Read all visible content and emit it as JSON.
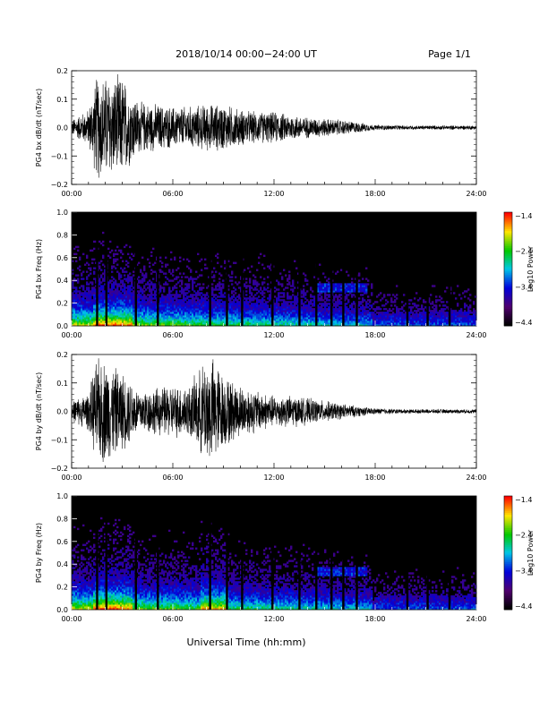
{
  "header": {
    "title": "2018/10/14  00:00−24:00 UT",
    "page": "Page 1/1"
  },
  "footer": {
    "xlabel": "Universal Time (hh:mm)"
  },
  "chart_data": [
    {
      "type": "line",
      "ylabel": "PG4 bx dB/dt (nT/sec)",
      "ylim": [
        -0.2,
        0.2
      ],
      "yticks": [
        "0.2",
        "0.1",
        "0.0",
        "−0.1",
        "−0.2"
      ],
      "xlim_hours": [
        0,
        24
      ],
      "xticks": [
        "00:00",
        "06:00",
        "12:00",
        "18:00",
        "24:00"
      ],
      "envelope": {
        "hour": [
          0,
          1,
          1.5,
          2,
          2.5,
          3,
          3.5,
          4,
          5,
          6,
          7,
          8,
          9,
          10,
          11,
          12,
          13,
          14,
          15,
          16,
          17,
          17.5,
          18,
          20,
          22,
          24
        ],
        "amplitude": [
          0.03,
          0.07,
          0.2,
          0.2,
          0.19,
          0.2,
          0.14,
          0.1,
          0.09,
          0.08,
          0.08,
          0.09,
          0.09,
          0.07,
          0.06,
          0.06,
          0.05,
          0.04,
          0.035,
          0.03,
          0.02,
          0.015,
          0.01,
          0.008,
          0.008,
          0.008
        ]
      }
    },
    {
      "type": "heatmap",
      "ylabel": "PG4 bx Freq (Hz)",
      "ylim": [
        0,
        1
      ],
      "yticks": [
        "1.0",
        "0.8",
        "0.6",
        "0.4",
        "0.2",
        "0.0"
      ],
      "xticks": [
        "00:00",
        "06:00",
        "12:00",
        "18:00",
        "24:00"
      ],
      "colorbar": {
        "label": "Log10 Power",
        "ticks": [
          "−1.4",
          "−2.4",
          "−3.4",
          "−4.4"
        ],
        "range": [
          -4.4,
          -1.4
        ]
      },
      "gaps_hours": [
        1.5,
        2.05,
        3.8,
        5.1,
        8.2,
        9.2,
        10.1,
        11.9,
        13.5,
        14.5,
        15.4,
        16.1,
        16.9,
        19.9,
        21.1,
        22.4
      ]
    },
    {
      "type": "line",
      "ylabel": "PG4 by dB/dt (nT/sec)",
      "ylim": [
        -0.2,
        0.2
      ],
      "yticks": [
        "0.2",
        "0.1",
        "0.0",
        "−0.1",
        "−0.2"
      ],
      "xlim_hours": [
        0,
        24
      ],
      "xticks": [
        "00:00",
        "06:00",
        "12:00",
        "18:00",
        "24:00"
      ],
      "envelope": {
        "hour": [
          0,
          1,
          1.5,
          2,
          2.5,
          3,
          3.5,
          4,
          5,
          6,
          7,
          7.5,
          8,
          8.5,
          9,
          10,
          11,
          12,
          13,
          14,
          15,
          16,
          17,
          18,
          20,
          22,
          24
        ],
        "amplitude": [
          0.04,
          0.07,
          0.2,
          0.2,
          0.17,
          0.15,
          0.12,
          0.08,
          0.09,
          0.1,
          0.1,
          0.15,
          0.2,
          0.2,
          0.14,
          0.1,
          0.08,
          0.06,
          0.06,
          0.05,
          0.04,
          0.03,
          0.02,
          0.012,
          0.008,
          0.008,
          0.008
        ]
      }
    },
    {
      "type": "heatmap",
      "ylabel": "PG4 by Freq (Hz)",
      "ylim": [
        0,
        1
      ],
      "yticks": [
        "1.0",
        "0.8",
        "0.6",
        "0.4",
        "0.2",
        "0.0"
      ],
      "xticks": [
        "00:00",
        "06:00",
        "12:00",
        "18:00",
        "24:00"
      ],
      "colorbar": {
        "label": "Log10 Power",
        "ticks": [
          "−1.4",
          "−2.4",
          "−3.4",
          "−4.4"
        ],
        "range": [
          -4.4,
          -1.4
        ]
      },
      "gaps_hours": [
        1.5,
        2.05,
        3.8,
        5.1,
        8.2,
        9.2,
        10.1,
        11.9,
        13.5,
        14.5,
        15.4,
        16.1,
        16.9,
        19.9,
        21.1,
        22.4
      ]
    }
  ]
}
